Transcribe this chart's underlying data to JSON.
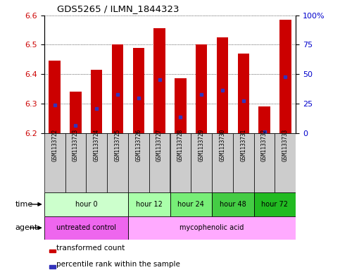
{
  "title": "GDS5265 / ILMN_1844323",
  "samples": [
    "GSM1133722",
    "GSM1133723",
    "GSM1133724",
    "GSM1133725",
    "GSM1133726",
    "GSM1133727",
    "GSM1133728",
    "GSM1133729",
    "GSM1133730",
    "GSM1133731",
    "GSM1133732",
    "GSM1133733"
  ],
  "bar_tops": [
    6.445,
    6.34,
    6.415,
    6.5,
    6.49,
    6.555,
    6.385,
    6.5,
    6.525,
    6.47,
    6.29,
    6.585
  ],
  "bar_base": 6.2,
  "pct_yvals": [
    6.295,
    6.225,
    6.283,
    6.33,
    6.32,
    6.38,
    6.255,
    6.33,
    6.345,
    6.31,
    6.205,
    6.39
  ],
  "ylim": [
    6.2,
    6.6
  ],
  "yticks_left": [
    6.2,
    6.3,
    6.4,
    6.5,
    6.6
  ],
  "yticks_right_vals": [
    0,
    25,
    50,
    75,
    100
  ],
  "yticks_right_labels": [
    "0",
    "25",
    "50",
    "75",
    "100%"
  ],
  "bar_color": "#cc0000",
  "pct_color": "#3333bb",
  "bar_width": 0.55,
  "time_groups": [
    {
      "label": "hour 0",
      "start": 0,
      "end": 4,
      "color": "#ccffcc"
    },
    {
      "label": "hour 12",
      "start": 4,
      "end": 6,
      "color": "#aaffaa"
    },
    {
      "label": "hour 24",
      "start": 6,
      "end": 8,
      "color": "#77ee77"
    },
    {
      "label": "hour 48",
      "start": 8,
      "end": 10,
      "color": "#44cc44"
    },
    {
      "label": "hour 72",
      "start": 10,
      "end": 12,
      "color": "#22bb22"
    }
  ],
  "agent_groups": [
    {
      "label": "untreated control",
      "start": 0,
      "end": 4,
      "color": "#ee66ee"
    },
    {
      "label": "mycophenolic acid",
      "start": 4,
      "end": 12,
      "color": "#ffaaff"
    }
  ],
  "sample_bg": "#cccccc",
  "bg_color": "#ffffff",
  "left_tick_color": "#cc0000",
  "right_tick_color": "#0000cc"
}
